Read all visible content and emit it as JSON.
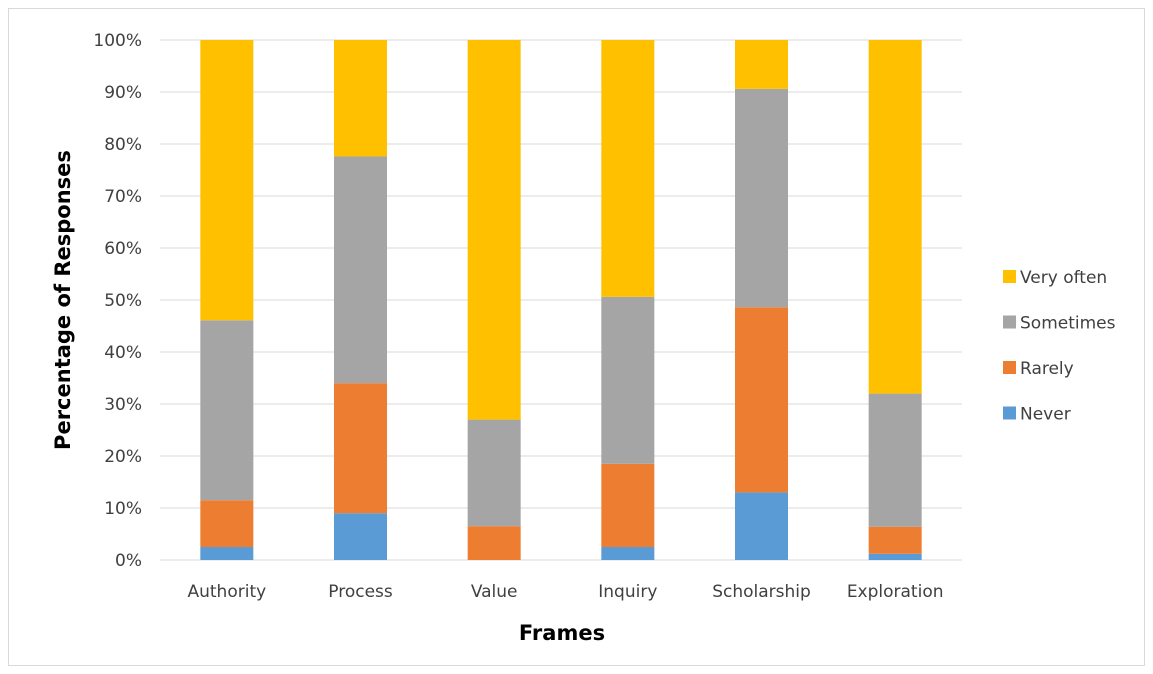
{
  "chart_data": {
    "type": "bar",
    "stacked": true,
    "categories": [
      "Authority",
      "Process",
      "Value",
      "Inquiry",
      "Scholarship",
      "Exploration"
    ],
    "series": [
      {
        "name": "Never",
        "color": "#5b9bd5",
        "values": [
          2.5,
          9,
          0,
          2.5,
          13,
          1.2
        ]
      },
      {
        "name": "Rarely",
        "color": "#ed7d31",
        "values": [
          9,
          25,
          6.5,
          16,
          35.6,
          5.2
        ]
      },
      {
        "name": "Sometimes",
        "color": "#a5a5a5",
        "values": [
          34.6,
          43.6,
          20.5,
          32.1,
          42,
          25.6
        ]
      },
      {
        "name": "Very often",
        "color": "#ffc000",
        "values": [
          53.9,
          22.4,
          73,
          49.4,
          9.4,
          68
        ]
      }
    ],
    "y_tick_labels": [
      "0%",
      "10%",
      "20%",
      "30%",
      "40%",
      "50%",
      "60%",
      "70%",
      "80%",
      "90%",
      "100%"
    ],
    "xlabel": "Frames",
    "ylabel": "Percentage of Responses",
    "ylim": [
      0,
      100
    ],
    "grid": true,
    "legend": "right"
  }
}
